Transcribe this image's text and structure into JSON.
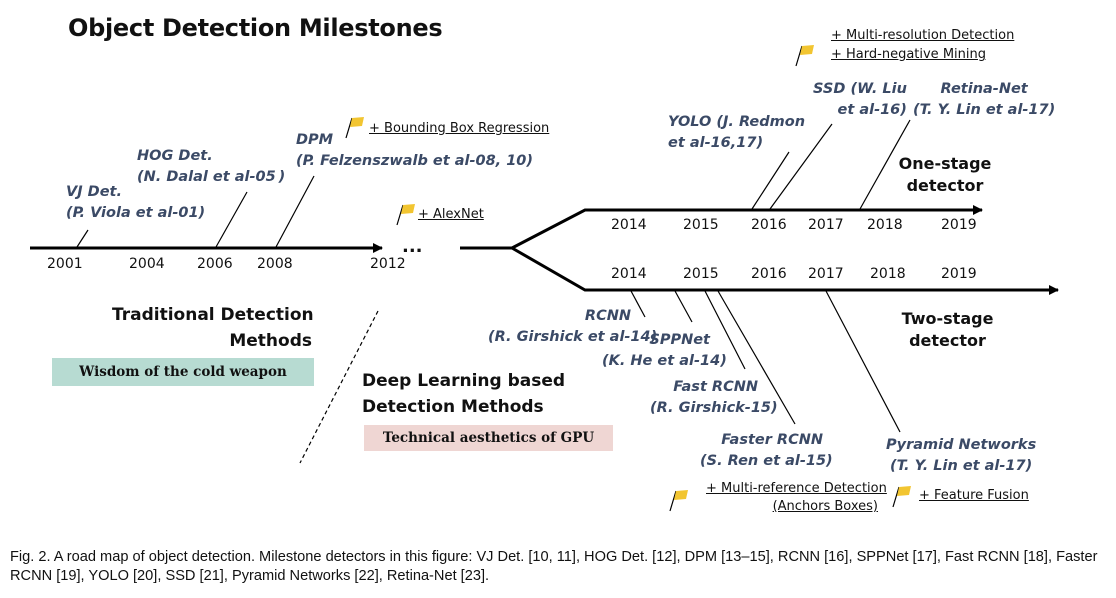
{
  "title": "Object Detection Milestones",
  "traditional_years": [
    "2001",
    "2004",
    "2006",
    "2008",
    "2012"
  ],
  "ellipsis": "...",
  "one_stage_years": [
    "2014",
    "2015",
    "2016",
    "2017",
    "2018",
    "2019"
  ],
  "two_stage_years": [
    "2014",
    "2015",
    "2016",
    "2017",
    "2018",
    "2019"
  ],
  "detectors": {
    "vj": [
      "VJ Det.",
      "(P. Viola et al-01)"
    ],
    "hog": [
      "HOG Det.",
      "(N. Dalal et al-05 )"
    ],
    "dpm": [
      "DPM",
      "(P. Felzenszwalb et al-08, 10)"
    ],
    "yolo": [
      "YOLO (J. Redmon",
      "et al-16,17)"
    ],
    "ssd": [
      "SSD (W. Liu",
      "et al-16)"
    ],
    "retina": [
      "Retina-Net",
      "(T. Y. Lin et al-17)"
    ],
    "rcnn": [
      "RCNN",
      "(R. Girshick et al-14)"
    ],
    "sppnet": [
      "SPPNet",
      "(K. He et al-14)"
    ],
    "fast_rcnn": [
      "Fast RCNN",
      "(R. Girshick-15)"
    ],
    "faster_rcnn": [
      "Faster RCNN",
      "(S. Ren et al-15)"
    ],
    "pyramid": [
      "Pyramid Networks",
      "(T. Y. Lin et al-17)"
    ]
  },
  "annotations": {
    "bbox_regression": "+ Bounding Box Regression",
    "alexnet": "+ AlexNet",
    "multi_resolution": "+ Multi-resolution Detection",
    "hard_negative": "+ Hard-negative Mining",
    "multi_reference": "+ Multi-reference Detection",
    "anchors": "(Anchors Boxes)",
    "feature_fusion": "+ Feature Fusion"
  },
  "eras": {
    "traditional": [
      "Traditional Detection",
      "Methods"
    ],
    "deep": [
      "Deep Learning based",
      "Detection Methods"
    ]
  },
  "stages": {
    "one_stage": [
      "One-stage",
      "detector"
    ],
    "two_stage": [
      "Two-stage",
      "detector"
    ]
  },
  "badges": {
    "traditional": "Wisdom of the cold weapon",
    "deep": "Technical aesthetics of GPU"
  },
  "colors": {
    "flag": "#f2c531",
    "detector_text": "#3b4a66",
    "badge_traditional": "#b7dbd2",
    "badge_deep": "#efd6d3"
  },
  "caption": "Fig. 2.  A road map of object detection. Milestone detectors in this figure: VJ Det. [10, 11], HOG Det. [12], DPM [13–15], RCNN [16], SPPNet [17], Fast RCNN [18], Faster RCNN [19], YOLO [20], SSD [21], Pyramid Networks [22], Retina-Net [23]."
}
